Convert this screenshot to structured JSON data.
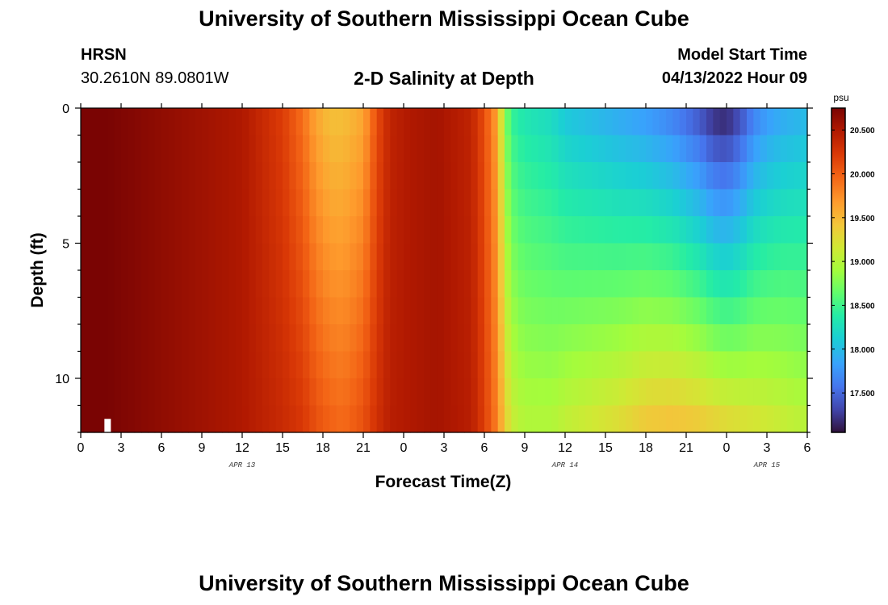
{
  "header": {
    "title": "University of Southern Mississippi Ocean Cube",
    "station": "HRSN",
    "coordinates": "30.2610N  89.0801W",
    "subtitle": "2-D Salinity at Depth",
    "model_start_label": "Model Start Time",
    "model_start_value": "04/13/2022 Hour 09"
  },
  "footer": {
    "title": "University of Southern Mississippi Ocean Cube"
  },
  "chart_data": {
    "type": "heatmap",
    "xlabel": "Forecast Time(Z)",
    "ylabel": "Depth (ft)",
    "x_range_hours": [
      0,
      54
    ],
    "y_range_ft": [
      0,
      12
    ],
    "x_ticks": [
      {
        "hour": 0,
        "label": "0"
      },
      {
        "hour": 3,
        "label": "3"
      },
      {
        "hour": 6,
        "label": "6"
      },
      {
        "hour": 9,
        "label": "9"
      },
      {
        "hour": 12,
        "label": "12"
      },
      {
        "hour": 15,
        "label": "15"
      },
      {
        "hour": 18,
        "label": "18"
      },
      {
        "hour": 21,
        "label": "21"
      },
      {
        "hour": 24,
        "label": "0"
      },
      {
        "hour": 27,
        "label": "3"
      },
      {
        "hour": 30,
        "label": "6"
      },
      {
        "hour": 33,
        "label": "9"
      },
      {
        "hour": 36,
        "label": "12"
      },
      {
        "hour": 39,
        "label": "15"
      },
      {
        "hour": 42,
        "label": "18"
      },
      {
        "hour": 45,
        "label": "21"
      },
      {
        "hour": 48,
        "label": "0"
      },
      {
        "hour": 51,
        "label": "3"
      },
      {
        "hour": 54,
        "label": "6"
      }
    ],
    "date_labels": [
      {
        "hour": 12,
        "label": "APR 13"
      },
      {
        "hour": 36,
        "label": "APR 14"
      },
      {
        "hour": 51,
        "label": "APR 15"
      }
    ],
    "y_ticks": [
      {
        "depth": 0,
        "label": "0"
      },
      {
        "depth": 5,
        "label": "5"
      },
      {
        "depth": 10,
        "label": "10"
      }
    ],
    "colorbar": {
      "unit": "psu",
      "range": [
        17.05,
        20.75
      ],
      "ticks": [
        "17.500",
        "18.000",
        "18.500",
        "19.000",
        "19.500",
        "20.000",
        "20.500"
      ],
      "tick_values": [
        17.5,
        18.0,
        18.5,
        19.0,
        19.5,
        20.0,
        20.5
      ]
    },
    "salinity_profile": {
      "hours": [
        0,
        2,
        4,
        6,
        8,
        10,
        12,
        13,
        15,
        16.5,
        17.5,
        18.5,
        19.5,
        21,
        22,
        23,
        24.5,
        26.5,
        29,
        30,
        31,
        31.5,
        32,
        32.5,
        33,
        34,
        35,
        36,
        38,
        40,
        42,
        44,
        46,
        47,
        48,
        49,
        50,
        51,
        52,
        53,
        54
      ],
      "surface": [
        20.75,
        20.75,
        20.7,
        20.65,
        20.6,
        20.55,
        20.5,
        20.4,
        20.2,
        19.9,
        19.6,
        19.45,
        19.45,
        19.6,
        20.1,
        20.4,
        20.5,
        20.55,
        20.4,
        20.1,
        19.6,
        18.8,
        18.45,
        18.35,
        18.3,
        18.25,
        18.2,
        18.05,
        17.95,
        17.85,
        17.75,
        17.6,
        17.35,
        17.15,
        17.1,
        17.3,
        17.6,
        17.75,
        17.85,
        17.9,
        17.95
      ],
      "bottom": [
        20.75,
        20.75,
        20.7,
        20.65,
        20.6,
        20.55,
        20.5,
        20.45,
        20.35,
        20.25,
        20.1,
        20.0,
        19.95,
        20.1,
        20.3,
        20.45,
        20.5,
        20.55,
        20.45,
        20.2,
        19.8,
        19.4,
        19.15,
        19.05,
        19.0,
        19.0,
        19.0,
        19.1,
        19.2,
        19.3,
        19.45,
        19.5,
        19.45,
        19.4,
        19.35,
        19.3,
        19.25,
        19.2,
        19.15,
        19.1,
        19.05
      ]
    },
    "note_marker": {
      "hour": 2,
      "depth_top": 11.5,
      "depth_bottom": 12
    }
  }
}
